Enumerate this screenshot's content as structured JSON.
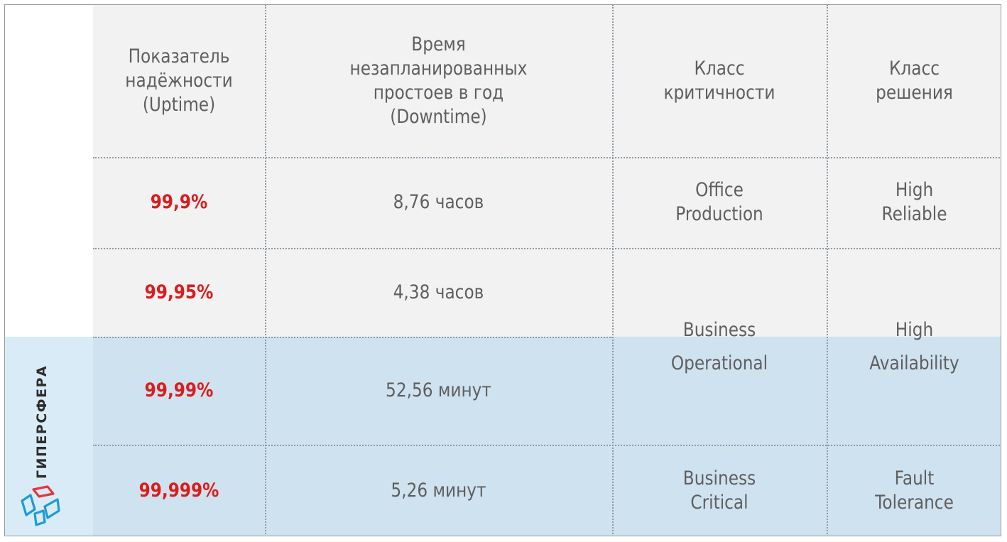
{
  "header": {
    "uptime": [
      "Показатель",
      "надёжности",
      "(Uptime)"
    ],
    "downtime": [
      "Время",
      "незапланированных",
      "простоев в год",
      "(Downtime)"
    ],
    "criticality": [
      "Класс",
      "критичности"
    ],
    "solution": [
      "Класс",
      "решения"
    ]
  },
  "rows": [
    {
      "uptime": "99,9%",
      "downtime": "8,76 часов"
    },
    {
      "uptime": "99,95%",
      "downtime": "4,38 часов"
    },
    {
      "uptime": "99,99%",
      "downtime": "52,56 минут"
    },
    {
      "uptime": "99,999%",
      "downtime": "5,26 минут"
    }
  ],
  "criticality_classes": {
    "office": [
      "Office",
      "Production"
    ],
    "business_operational": [
      "Business",
      "Operational"
    ],
    "business_critical": [
      "Business",
      "Critical"
    ]
  },
  "solution_classes": {
    "high_reliable": [
      "High",
      "Reliable"
    ],
    "high_availability": [
      "High",
      "Availability"
    ],
    "fault_tolerance": [
      "Fault",
      "Tolerance"
    ]
  },
  "logo": {
    "text": "ГИПЕРСФЕРА",
    "icon": "cube-logo-icon",
    "colors": {
      "red": "#e8333a",
      "blue": "#1e9ad6"
    }
  },
  "colors": {
    "uptime_accent": "#dd1b1b",
    "table_bg": "#f2f2f2",
    "highlight_bg": "#cfe2ef"
  }
}
